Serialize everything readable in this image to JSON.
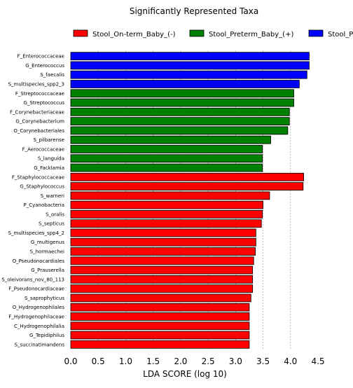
{
  "chart_data": {
    "type": "bar",
    "orientation": "horizontal",
    "title": "Significantly Represented Taxa",
    "xlabel": "LDA SCORE (log 10)",
    "ylabel": "",
    "xlim": [
      0,
      4.5
    ],
    "xticks": [
      "0.0",
      "0.5",
      "1.0",
      "1.5",
      "2.0",
      "2.5",
      "3.0",
      "3.5",
      "4.0",
      "4.5"
    ],
    "grid": "vertical dashed at x ticks",
    "legend": {
      "position": "top",
      "entries": [
        {
          "name": "Stool_On-term_Baby_(-)",
          "color": "#ff0000"
        },
        {
          "name": "Stool_Preterm_Baby_(+)",
          "color": "#008000"
        },
        {
          "name": "Stool_P",
          "color": "#0000ff"
        }
      ]
    },
    "categories": [
      "F_Enterococcaceae",
      "G_Enterococcus",
      "S_faecalis",
      "S_multispecies_spp2_3",
      "F_Streptococcaceae",
      "G_Streptococcus",
      "F_Corynebacteriaceae",
      "G_Corynebacterium",
      "O_Corynebacteriales",
      "S_pilbarense",
      "F_Aerococcaceae",
      "S_languida",
      "G_Facklamia",
      "F_Staphylococcaceae",
      "G_Staphylococcus",
      "S_warneri",
      "P_Cyanobacteria",
      "S_oralis",
      "S_septicus",
      "S_multispecies_spp4_2",
      "G_multigenus",
      "S_hormaechei",
      "O_Pseudonocardiales",
      "G_Prauserella",
      "S_oleivorans_nov_80_113",
      "F_Pseudonocardiaceae",
      "S_saprophyticus",
      "O_Hydrogenophilales",
      "F_Hydrogenophilaceae",
      "C_Hydrogenophilalia",
      "G_Tepidiphilus",
      "S_succinatimandens"
    ],
    "values": [
      4.34,
      4.34,
      4.3,
      4.16,
      4.06,
      4.06,
      3.98,
      3.98,
      3.95,
      3.64,
      3.49,
      3.49,
      3.49,
      4.24,
      4.23,
      3.62,
      3.5,
      3.49,
      3.47,
      3.37,
      3.37,
      3.36,
      3.33,
      3.31,
      3.31,
      3.31,
      3.28,
      3.25,
      3.25,
      3.25,
      3.25,
      3.25
    ],
    "groups": [
      "Stool_P",
      "Stool_P",
      "Stool_P",
      "Stool_P",
      "Stool_Preterm_Baby_(+)",
      "Stool_Preterm_Baby_(+)",
      "Stool_Preterm_Baby_(+)",
      "Stool_Preterm_Baby_(+)",
      "Stool_Preterm_Baby_(+)",
      "Stool_Preterm_Baby_(+)",
      "Stool_Preterm_Baby_(+)",
      "Stool_Preterm_Baby_(+)",
      "Stool_Preterm_Baby_(+)",
      "Stool_On-term_Baby_(-)",
      "Stool_On-term_Baby_(-)",
      "Stool_On-term_Baby_(-)",
      "Stool_On-term_Baby_(-)",
      "Stool_On-term_Baby_(-)",
      "Stool_On-term_Baby_(-)",
      "Stool_On-term_Baby_(-)",
      "Stool_On-term_Baby_(-)",
      "Stool_On-term_Baby_(-)",
      "Stool_On-term_Baby_(-)",
      "Stool_On-term_Baby_(-)",
      "Stool_On-term_Baby_(-)",
      "Stool_On-term_Baby_(-)",
      "Stool_On-term_Baby_(-)",
      "Stool_On-term_Baby_(-)",
      "Stool_On-term_Baby_(-)",
      "Stool_On-term_Baby_(-)",
      "Stool_On-term_Baby_(-)",
      "Stool_On-term_Baby_(-)"
    ]
  }
}
